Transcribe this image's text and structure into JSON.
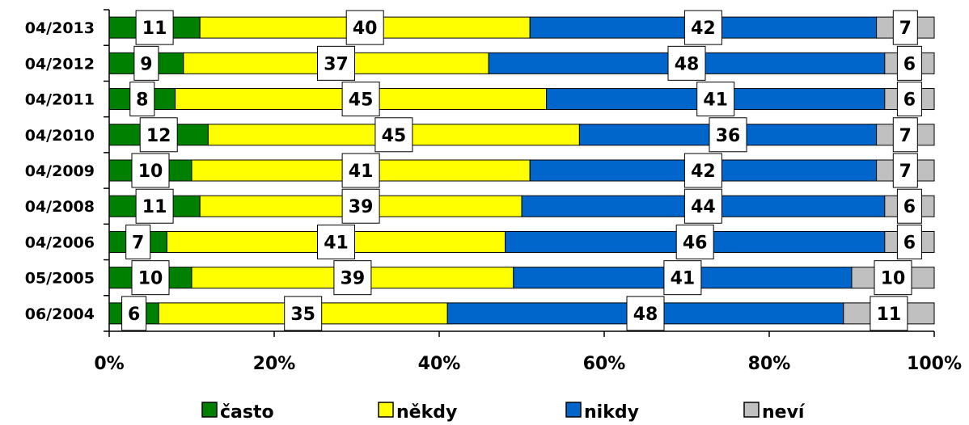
{
  "chart_data": {
    "type": "bar",
    "orientation": "horizontal",
    "stacked": true,
    "stack_mode": "percent",
    "categories": [
      "04/2013",
      "04/2012",
      "04/2011",
      "04/2010",
      "04/2009",
      "04/2008",
      "04/2006",
      "05/2005",
      "06/2004"
    ],
    "series": [
      {
        "name": "často",
        "color": "#008000",
        "values": [
          11,
          9,
          8,
          12,
          10,
          11,
          7,
          10,
          6
        ]
      },
      {
        "name": "někdy",
        "color": "#ffff00",
        "values": [
          40,
          37,
          45,
          45,
          41,
          39,
          41,
          39,
          35
        ]
      },
      {
        "name": "nikdy",
        "color": "#0066cc",
        "values": [
          42,
          48,
          41,
          36,
          42,
          44,
          46,
          41,
          48
        ]
      },
      {
        "name": "neví",
        "color": "#c0c0c0",
        "values": [
          7,
          6,
          6,
          7,
          7,
          6,
          6,
          10,
          11
        ]
      }
    ],
    "x_ticks": [
      "0%",
      "20%",
      "40%",
      "60%",
      "80%",
      "100%"
    ],
    "xlim": [
      0,
      100
    ],
    "legend_position": "bottom",
    "grid": false,
    "title": "",
    "xlabel": "",
    "ylabel": ""
  }
}
